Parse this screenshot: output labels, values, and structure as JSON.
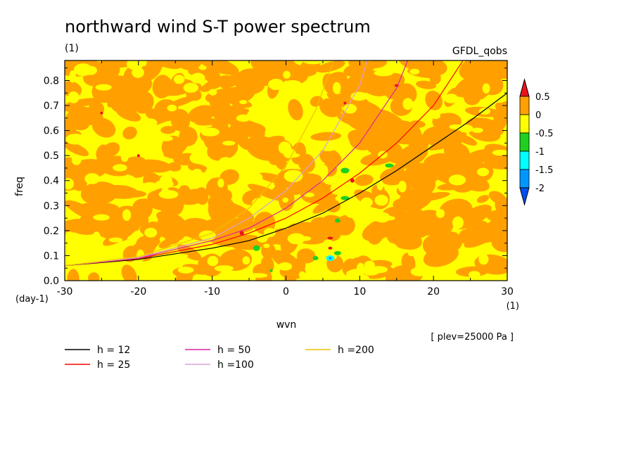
{
  "chart_data": {
    "type": "heatmap",
    "title": "northward wind S-T power spectrum",
    "title_unit": "(1)",
    "model_label": "GFDL_qobs",
    "xlabel": "wvn",
    "x_unit": "(1)",
    "ylabel": "freq",
    "y_unit": "(day-1)",
    "xlim": [
      -30,
      30
    ],
    "ylim": [
      0,
      0.88
    ],
    "x_ticks": [
      -30,
      -20,
      -10,
      0,
      10,
      20,
      30
    ],
    "y_ticks": [
      0.0,
      0.1,
      0.2,
      0.3,
      0.4,
      0.5,
      0.6,
      0.7,
      0.8
    ],
    "x_tick_labels": [
      "-30",
      "-20",
      "-10",
      "0",
      "10",
      "20",
      "30"
    ],
    "y_tick_labels": [
      "0.0",
      "0.1",
      "0.2",
      "0.3",
      "0.4",
      "0.5",
      "0.6",
      "0.7",
      "0.8"
    ],
    "annotation": "[ plev=25000 Pa ]",
    "colorbar": {
      "levels": [
        -2,
        -1.5,
        -1,
        -0.5,
        0,
        0.5
      ],
      "labels": [
        "0.5",
        "0",
        "-0.5",
        "-1",
        "-1.5",
        "-2"
      ],
      "colors": {
        "above": "#e8141e",
        "0_to_0.5": "#ffa000",
        "-0.5_to_0": "#ffff00",
        "-1_to_-0.5": "#20d020",
        "-1.5_to_-1": "#00ffff",
        "-2_to_-1.5": "#0096ff",
        "below": "#0050f0"
      }
    },
    "background_pattern": "alternating orange (0 to 0.5) and yellow (-0.5 to 0) blobs with isolated green, cyan and red patches",
    "series": [
      {
        "name": "h = 12",
        "color": "#000000",
        "h": 12,
        "x": [
          -30,
          -20,
          -10,
          -5,
          0,
          5,
          10,
          15,
          20,
          25,
          30
        ],
        "y": [
          0.06,
          0.085,
          0.13,
          0.16,
          0.21,
          0.27,
          0.35,
          0.44,
          0.54,
          0.64,
          0.75
        ]
      },
      {
        "name": "h = 25",
        "color": "#ff0000",
        "h": 25,
        "x": [
          -30,
          -20,
          -10,
          -5,
          0,
          5,
          10,
          15,
          20,
          24
        ],
        "y": [
          0.06,
          0.088,
          0.145,
          0.19,
          0.25,
          0.33,
          0.43,
          0.55,
          0.7,
          0.88
        ]
      },
      {
        "name": "h = 50",
        "color": "#e020a0",
        "h": 50,
        "x": [
          -30,
          -20,
          -10,
          -5,
          0,
          5,
          10,
          15,
          16.5
        ],
        "y": [
          0.06,
          0.09,
          0.16,
          0.21,
          0.29,
          0.4,
          0.55,
          0.77,
          0.88
        ]
      },
      {
        "name": "h =100",
        "color": "#d8a0d8",
        "h": 100,
        "x": [
          -30,
          -20,
          -10,
          -5,
          0,
          5,
          10,
          11
        ],
        "y": [
          0.06,
          0.092,
          0.17,
          0.25,
          0.36,
          0.52,
          0.78,
          0.88
        ]
      },
      {
        "name": "h =200",
        "color": "#f0c000",
        "h": 200,
        "x": [
          -30,
          -20,
          -10,
          -5,
          0,
          4,
          6.5
        ],
        "y": [
          0.06,
          0.095,
          0.19,
          0.29,
          0.46,
          0.68,
          0.88
        ]
      }
    ],
    "legend_position": "bottom-left"
  }
}
